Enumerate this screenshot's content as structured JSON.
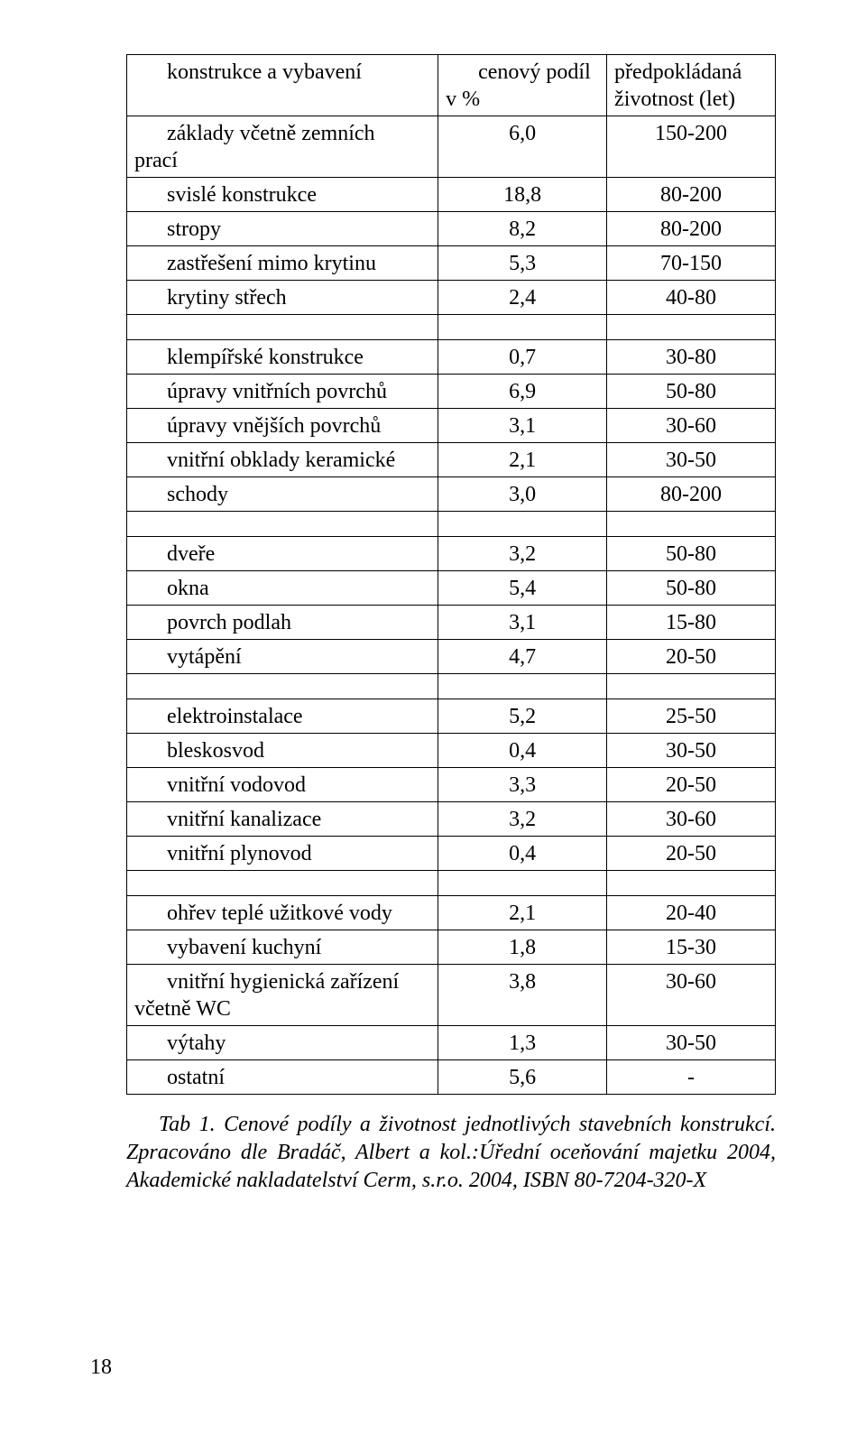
{
  "header": {
    "col1": "konstrukce a vybavení",
    "col2_line1": "cenový podíl",
    "col2_line2": "v %",
    "col3_line1": "předpokládaná",
    "col3_line2": "životnost (let)"
  },
  "groups": [
    {
      "rows": [
        {
          "label_line1": "základy včetně zemních",
          "label_line2": "prací",
          "value": "6,0",
          "life": "150-200"
        },
        {
          "label": "svislé konstrukce",
          "value": "18,8",
          "life": "80-200"
        },
        {
          "label": "stropy",
          "value": "8,2",
          "life": "80-200"
        },
        {
          "label": "zastřešení mimo krytinu",
          "value": "5,3",
          "life": "70-150"
        },
        {
          "label": "krytiny střech",
          "value": "2,4",
          "life": "40-80"
        }
      ]
    },
    {
      "rows": [
        {
          "label": "klempířské konstrukce",
          "value": "0,7",
          "life": "30-80"
        },
        {
          "label": "úpravy vnitřních povrchů",
          "value": "6,9",
          "life": "50-80"
        },
        {
          "label": "úpravy vnějších povrchů",
          "value": "3,1",
          "life": "30-60"
        },
        {
          "label": "vnitřní obklady keramické",
          "value": "2,1",
          "life": "30-50"
        },
        {
          "label": "schody",
          "value": "3,0",
          "life": "80-200"
        }
      ]
    },
    {
      "rows": [
        {
          "label": "dveře",
          "value": "3,2",
          "life": "50-80"
        },
        {
          "label": "okna",
          "value": "5,4",
          "life": "50-80"
        },
        {
          "label": "povrch podlah",
          "value": "3,1",
          "life": "15-80"
        },
        {
          "label": "vytápění",
          "value": "4,7",
          "life": "20-50"
        }
      ]
    },
    {
      "rows": [
        {
          "label": "elektroinstalace",
          "value": "5,2",
          "life": "25-50"
        },
        {
          "label": "bleskosvod",
          "value": "0,4",
          "life": "30-50"
        },
        {
          "label": "vnitřní vodovod",
          "value": "3,3",
          "life": "20-50"
        },
        {
          "label": "vnitřní kanalizace",
          "value": "3,2",
          "life": "30-60"
        },
        {
          "label": "vnitřní plynovod",
          "value": "0,4",
          "life": "20-50"
        }
      ]
    },
    {
      "rows": [
        {
          "label": "ohřev teplé užitkové vody",
          "value": "2,1",
          "life": "20-40"
        },
        {
          "label": "vybavení kuchyní",
          "value": "1,8",
          "life": "15-30"
        },
        {
          "label_line1": "vnitřní hygienická zařízení",
          "label_line2": "včetně WC",
          "value": "3,8",
          "life": "30-60"
        },
        {
          "label": "výtahy",
          "value": "1,3",
          "life": "30-50"
        },
        {
          "label": "ostatní",
          "value": "5,6",
          "life": "-"
        }
      ]
    }
  ],
  "caption": {
    "text": "Tab 1. Cenové podíly a životnost jednotlivých stavebních konstrukcí. Zpracováno dle Bradáč, Albert a kol.:Úřední oceňování majetku 2004, Akademické nakladatelství Cerm, s.r.o. 2004, ISBN 80-7204-320-X"
  },
  "page_number": "18"
}
